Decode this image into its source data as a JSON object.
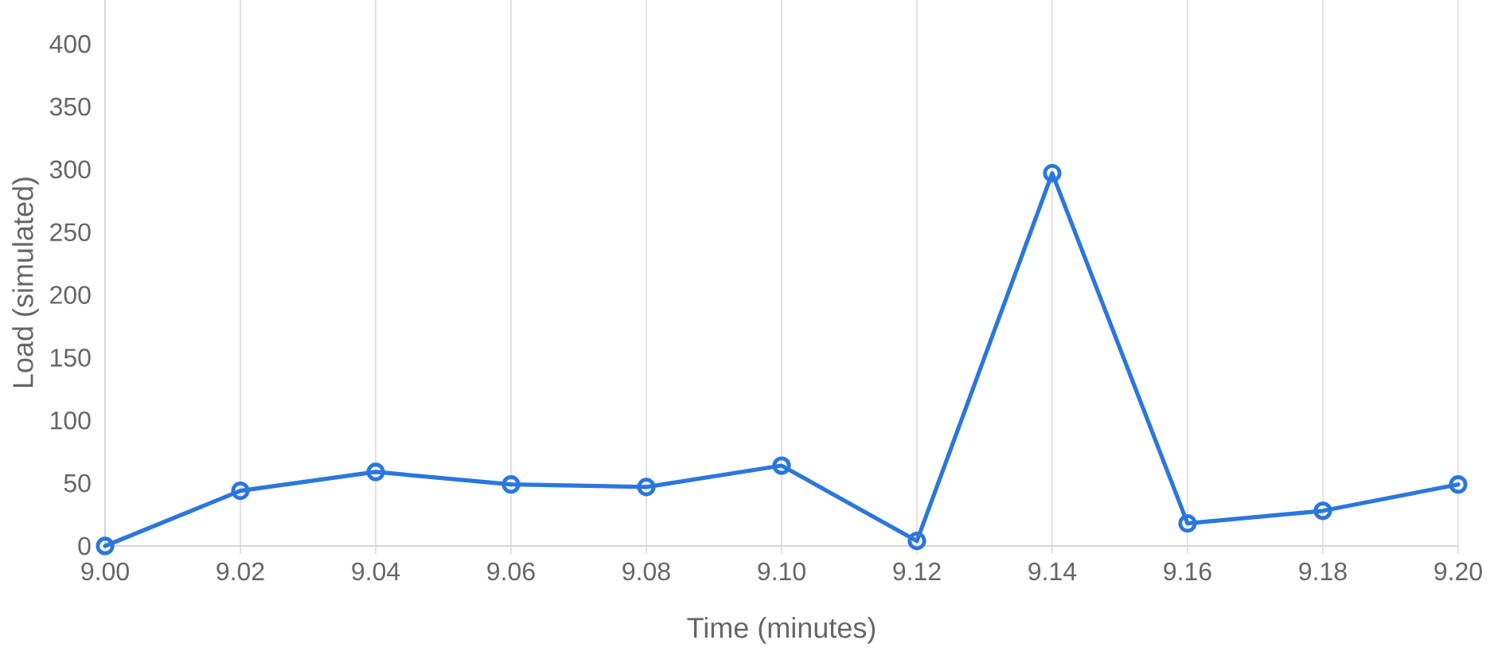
{
  "chart_data": {
    "type": "line",
    "xlabel": "Time (minutes)",
    "ylabel": "Load (simulated)",
    "x": [
      9.0,
      9.02,
      9.04,
      9.06,
      9.08,
      9.1,
      9.12,
      9.14,
      9.16,
      9.18,
      9.2
    ],
    "values": [
      0,
      44,
      59,
      49,
      47,
      64,
      4,
      297,
      18,
      28,
      49
    ],
    "color": "#2a77dd",
    "xlim": [
      9.0,
      9.2
    ],
    "xticks": [
      {
        "value": 9.0,
        "label": "9.00"
      },
      9.02,
      9.04,
      9.06,
      9.08,
      {
        "value": 9.1,
        "label": "9.10"
      },
      9.12,
      9.14,
      9.16,
      9.18,
      {
        "value": 9.2,
        "label": "9.20"
      }
    ],
    "ylim": [
      0,
      435
    ],
    "yticks": [
      0,
      50,
      100,
      150,
      200,
      250,
      300,
      350,
      400
    ],
    "grid": "x",
    "marker": "circle",
    "line_style": "solid"
  }
}
